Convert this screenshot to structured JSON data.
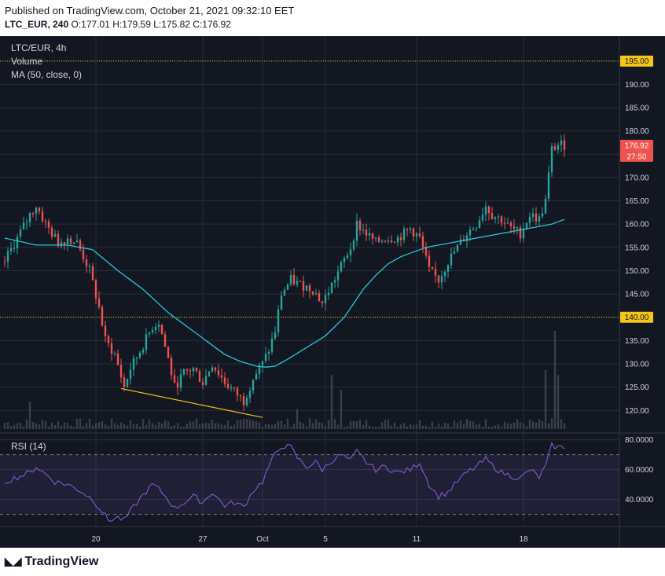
{
  "header": {
    "published": "Published on TradingView.com, October 21, 2021 09:32:10 EET",
    "symbol": "LTC_EUR, 240",
    "ohlc": "O:177.01 H:179.59 L:175.82 C:176.92"
  },
  "legend": {
    "title": "LTC/EUR, 4h",
    "volume": "Volume",
    "ma": "MA (50, close, 0)"
  },
  "footer": {
    "brand": "TradingView"
  },
  "colors": {
    "up": "#26a69a",
    "down": "#ef5350",
    "ma": "#26c6da",
    "rsi": "#7e57c2",
    "hline": "#f5c518",
    "trend": "#f5c518",
    "price_badge": "#ef5350"
  },
  "chart_data": {
    "type": "candlestick",
    "timeframe": "4h",
    "x_ticks": [
      "20",
      "27",
      "Oct",
      "5",
      "11",
      "18"
    ],
    "price_axis": {
      "ylim": [
        116,
        199
      ],
      "ticks": [
        "120.00",
        "125.00",
        "130.00",
        "135.00",
        "140.00",
        "145.00",
        "150.00",
        "155.00",
        "160.00",
        "165.00",
        "170.00",
        "175.00",
        "180.00",
        "185.00",
        "190.00",
        "195.00"
      ]
    },
    "horizontal_lines": [
      {
        "value": 195.0,
        "label": "195.00"
      },
      {
        "value": 140.0,
        "label": "140.00"
      }
    ],
    "last_price": {
      "value": 176.92,
      "label": "176.92",
      "countdown": "27:50"
    },
    "trendline": [
      {
        "bar": 37,
        "price": 124.7
      },
      {
        "bar": 82,
        "price": 118.5
      }
    ],
    "price_path": [
      [
        0,
        152
      ],
      [
        4,
        157
      ],
      [
        8,
        162
      ],
      [
        10,
        164
      ],
      [
        13,
        160
      ],
      [
        17,
        156
      ],
      [
        20,
        157
      ],
      [
        23,
        156
      ],
      [
        27,
        150
      ],
      [
        30,
        142
      ],
      [
        32,
        135
      ],
      [
        35,
        132
      ],
      [
        38,
        125
      ],
      [
        40,
        129
      ],
      [
        44,
        134
      ],
      [
        47,
        138
      ],
      [
        49,
        139
      ],
      [
        52,
        131
      ],
      [
        54,
        125
      ],
      [
        57,
        128
      ],
      [
        60,
        129
      ],
      [
        63,
        126
      ],
      [
        66,
        130
      ],
      [
        68,
        128
      ],
      [
        70,
        126
      ],
      [
        73,
        124
      ],
      [
        76,
        122
      ],
      [
        79,
        127
      ],
      [
        82,
        130
      ],
      [
        84,
        133
      ],
      [
        86,
        137
      ],
      [
        88,
        145
      ],
      [
        91,
        148
      ],
      [
        94,
        147
      ],
      [
        98,
        146
      ],
      [
        101,
        143
      ],
      [
        104,
        147
      ],
      [
        107,
        151
      ],
      [
        110,
        155
      ],
      [
        112,
        160
      ],
      [
        115,
        158
      ],
      [
        118,
        156
      ],
      [
        121,
        157
      ],
      [
        125,
        157
      ],
      [
        129,
        159
      ],
      [
        132,
        157
      ],
      [
        135,
        150
      ],
      [
        138,
        148
      ],
      [
        141,
        152
      ],
      [
        144,
        155
      ],
      [
        147,
        158
      ],
      [
        150,
        160
      ],
      [
        153,
        164
      ],
      [
        155,
        162
      ],
      [
        158,
        161
      ],
      [
        161,
        159
      ],
      [
        164,
        158
      ],
      [
        167,
        162
      ],
      [
        170,
        161
      ],
      [
        172,
        165
      ],
      [
        174,
        176
      ],
      [
        176,
        177
      ],
      [
        178,
        177
      ]
    ],
    "ma_path": [
      [
        0,
        157
      ],
      [
        10,
        155.5
      ],
      [
        20,
        155.5
      ],
      [
        28,
        154.5
      ],
      [
        36,
        150
      ],
      [
        44,
        146
      ],
      [
        52,
        141
      ],
      [
        60,
        137
      ],
      [
        66,
        134
      ],
      [
        70,
        132
      ],
      [
        75,
        130.5
      ],
      [
        80,
        129.5
      ],
      [
        83,
        129.3
      ],
      [
        86,
        129.5
      ],
      [
        90,
        131
      ],
      [
        96,
        133.5
      ],
      [
        102,
        136
      ],
      [
        108,
        140
      ],
      [
        114,
        146
      ],
      [
        118,
        149
      ],
      [
        122,
        151.5
      ],
      [
        126,
        153
      ],
      [
        130,
        154
      ],
      [
        134,
        155
      ],
      [
        138,
        155.5
      ],
      [
        142,
        156
      ],
      [
        146,
        156.5
      ],
      [
        150,
        157
      ],
      [
        154,
        157.5
      ],
      [
        158,
        158
      ],
      [
        162,
        158.5
      ],
      [
        166,
        159
      ],
      [
        170,
        159.5
      ],
      [
        174,
        160
      ],
      [
        178,
        161
      ]
    ],
    "volume_spikes": [
      {
        "bar": 8,
        "rel": 0.28
      },
      {
        "bar": 93,
        "rel": 0.2
      },
      {
        "bar": 104,
        "rel": 0.55
      },
      {
        "bar": 107,
        "rel": 0.4
      },
      {
        "bar": 172,
        "rel": 0.6
      },
      {
        "bar": 175,
        "rel": 1.0
      },
      {
        "bar": 176,
        "rel": 0.55
      }
    ],
    "rsi": {
      "label": "RSI (14)",
      "ylim": [
        24,
        83
      ],
      "ticks": [
        "40.0000",
        "60.0000",
        "80.0000"
      ],
      "upper_band": 70,
      "lower_band": 30,
      "path": [
        [
          0,
          52
        ],
        [
          4,
          55
        ],
        [
          8,
          58
        ],
        [
          10,
          62
        ],
        [
          13,
          57
        ],
        [
          16,
          52
        ],
        [
          20,
          50
        ],
        [
          24,
          46
        ],
        [
          28,
          40
        ],
        [
          31,
          32
        ],
        [
          33,
          26
        ],
        [
          36,
          28
        ],
        [
          38,
          26
        ],
        [
          41,
          35
        ],
        [
          44,
          43
        ],
        [
          47,
          50
        ],
        [
          49,
          47
        ],
        [
          52,
          40
        ],
        [
          54,
          34
        ],
        [
          57,
          38
        ],
        [
          60,
          42
        ],
        [
          63,
          38
        ],
        [
          66,
          45
        ],
        [
          68,
          40
        ],
        [
          70,
          36
        ],
        [
          73,
          38
        ],
        [
          76,
          35
        ],
        [
          79,
          46
        ],
        [
          82,
          52
        ],
        [
          84,
          62
        ],
        [
          86,
          70
        ],
        [
          88,
          76
        ],
        [
          91,
          75
        ],
        [
          93,
          68
        ],
        [
          96,
          62
        ],
        [
          99,
          65
        ],
        [
          101,
          60
        ],
        [
          104,
          66
        ],
        [
          107,
          70
        ],
        [
          110,
          66
        ],
        [
          112,
          72
        ],
        [
          115,
          65
        ],
        [
          118,
          60
        ],
        [
          121,
          62
        ],
        [
          125,
          58
        ],
        [
          129,
          60
        ],
        [
          132,
          65
        ],
        [
          135,
          50
        ],
        [
          138,
          42
        ],
        [
          141,
          45
        ],
        [
          144,
          52
        ],
        [
          147,
          58
        ],
        [
          150,
          62
        ],
        [
          153,
          67
        ],
        [
          155,
          63
        ],
        [
          158,
          58
        ],
        [
          161,
          56
        ],
        [
          164,
          54
        ],
        [
          167,
          60
        ],
        [
          170,
          55
        ],
        [
          172,
          62
        ],
        [
          174,
          76
        ],
        [
          176,
          75
        ],
        [
          178,
          75
        ]
      ]
    }
  }
}
